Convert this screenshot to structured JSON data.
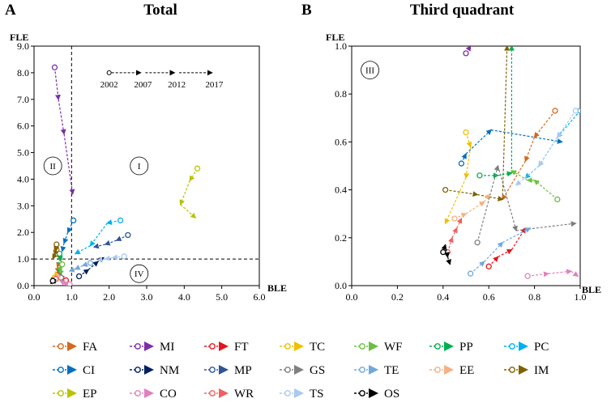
{
  "chart_data": [
    {
      "type": "scatter",
      "panel_letter": "A",
      "title": "Total",
      "xlabel": "BLE",
      "ylabel": "FLE",
      "xlim": [
        0,
        6
      ],
      "ylim": [
        0,
        9
      ],
      "x_ticks": [
        "0.0",
        "1.0",
        "2.0",
        "3.0",
        "4.0",
        "5.0",
        "6.0"
      ],
      "y_ticks": [
        "0.0",
        "1.0",
        "2.0",
        "3.0",
        "4.0",
        "5.0",
        "6.0",
        "7.0",
        "8.0",
        "9.0"
      ],
      "reference_lines": {
        "x": 1.0,
        "y": 1.0
      },
      "quadrant_labels": [
        {
          "label": "II",
          "x": 0.5,
          "y": 4.5
        },
        {
          "label": "I",
          "x": 2.8,
          "y": 4.5
        },
        {
          "label": "IV",
          "x": 2.8,
          "y": 0.45
        }
      ],
      "time_legend": {
        "years": [
          "2002",
          "2007",
          "2012",
          "2017"
        ],
        "x": [
          2.0,
          2.9,
          3.8,
          4.8
        ],
        "y": 8.0
      },
      "series": [
        {
          "name": "MI",
          "x": [
            0.55,
            0.65,
            0.8,
            1.03
          ],
          "y": [
            8.2,
            7.0,
            5.7,
            3.45
          ]
        },
        {
          "name": "EP",
          "x": [
            4.35,
            4.15,
            3.9,
            4.3
          ],
          "y": [
            4.4,
            3.95,
            3.05,
            2.55
          ]
        },
        {
          "name": "PC",
          "x": [
            2.3,
            1.95,
            1.5,
            1.1
          ],
          "y": [
            2.45,
            2.35,
            1.5,
            1.2
          ]
        },
        {
          "name": "CI",
          "x": [
            1.05,
            0.9,
            0.8,
            0.75
          ],
          "y": [
            2.45,
            2.0,
            1.6,
            1.3
          ]
        },
        {
          "name": "MP",
          "x": [
            2.5,
            2.2,
            1.9,
            1.6
          ],
          "y": [
            1.9,
            1.7,
            1.55,
            1.45
          ]
        },
        {
          "name": "NM",
          "x": [
            1.2,
            1.45,
            1.7,
            1.85
          ],
          "y": [
            0.35,
            0.6,
            0.9,
            1.05
          ]
        },
        {
          "name": "TS",
          "x": [
            2.4,
            2.1,
            1.9,
            1.7
          ],
          "y": [
            1.1,
            1.05,
            1.0,
            0.95
          ]
        },
        {
          "name": "TE",
          "x": [
            1.5,
            1.3,
            1.1,
            0.95
          ],
          "y": [
            0.85,
            0.75,
            0.62,
            0.55
          ]
        },
        {
          "name": "FA",
          "x": [
            0.6,
            0.7,
            0.62,
            0.65
          ],
          "y": [
            1.35,
            1.0,
            0.7,
            0.5
          ]
        },
        {
          "name": "PP",
          "x": [
            0.68,
            0.72,
            0.7,
            0.66
          ],
          "y": [
            1.2,
            0.95,
            0.7,
            0.45
          ]
        },
        {
          "name": "WF",
          "x": [
            0.75,
            0.7,
            0.72,
            0.68
          ],
          "y": [
            0.8,
            0.65,
            0.55,
            0.42
          ]
        },
        {
          "name": "IM",
          "x": [
            0.6,
            0.58,
            0.55,
            0.5
          ],
          "y": [
            1.55,
            1.3,
            1.15,
            1.02
          ]
        },
        {
          "name": "FT",
          "x": [
            0.85,
            0.75,
            0.68,
            0.62
          ],
          "y": [
            0.2,
            0.3,
            0.4,
            0.5
          ]
        },
        {
          "name": "TC",
          "x": [
            0.55,
            0.6,
            0.55,
            0.5
          ],
          "y": [
            0.3,
            0.45,
            0.35,
            0.22
          ]
        },
        {
          "name": "GS",
          "x": [
            0.72,
            0.7,
            0.68,
            0.66
          ],
          "y": [
            0.3,
            0.35,
            0.42,
            0.5
          ]
        },
        {
          "name": "EE",
          "x": [
            0.6,
            0.62,
            0.58,
            0.55
          ],
          "y": [
            0.25,
            0.35,
            0.3,
            0.2
          ]
        },
        {
          "name": "CO",
          "x": [
            0.95,
            0.85,
            0.78,
            0.7
          ],
          "y": [
            0.05,
            0.08,
            0.12,
            0.18
          ]
        },
        {
          "name": "WR",
          "x": [
            0.58,
            0.55,
            0.52,
            0.5
          ],
          "y": [
            0.25,
            0.2,
            0.15,
            0.12
          ]
        },
        {
          "name": "OS",
          "x": [
            0.5,
            0.48,
            0.47,
            0.45
          ],
          "y": [
            0.18,
            0.12,
            0.1,
            0.08
          ]
        }
      ]
    },
    {
      "type": "scatter",
      "panel_letter": "B",
      "title": "Third quadrant",
      "xlabel": "BLE",
      "ylabel": "FLE",
      "xlim": [
        0,
        1
      ],
      "ylim": [
        0,
        1
      ],
      "x_ticks": [
        "0.0",
        "0.2",
        "0.4",
        "0.6",
        "0.8",
        "1.0"
      ],
      "y_ticks": [
        "0.0",
        "0.2",
        "0.4",
        "0.6",
        "0.8",
        "1.0"
      ],
      "quadrant_labels": [
        {
          "label": "III",
          "x": 0.08,
          "y": 0.9
        }
      ],
      "series": [
        {
          "name": "MI",
          "x": [
            0.5,
            0.52
          ],
          "y": [
            0.97,
            1.0
          ]
        },
        {
          "name": "FA",
          "x": [
            0.89,
            0.8,
            0.76,
            0.66
          ],
          "y": [
            0.73,
            0.62,
            0.52,
            0.36
          ]
        },
        {
          "name": "IM",
          "x": [
            0.41,
            0.55,
            0.66,
            0.68
          ],
          "y": [
            0.4,
            0.38,
            0.36,
            1.0
          ]
        },
        {
          "name": "PC",
          "x": [
            1.0,
            0.9,
            0.82,
            0.76
          ],
          "y": [
            0.73,
            0.62,
            0.5,
            0.45
          ]
        },
        {
          "name": "CI",
          "x": [
            0.48,
            0.5,
            0.61,
            0.92
          ],
          "y": [
            0.51,
            0.55,
            0.65,
            0.6
          ]
        },
        {
          "name": "PP",
          "x": [
            0.56,
            0.64,
            0.7,
            0.7
          ],
          "y": [
            0.46,
            0.46,
            0.47,
            1.0
          ]
        },
        {
          "name": "WF",
          "x": [
            0.9,
            0.8,
            0.77,
            0.7
          ],
          "y": [
            0.36,
            0.44,
            0.44,
            0.48
          ]
        },
        {
          "name": "TC",
          "x": [
            0.5,
            0.52,
            0.5,
            0.41
          ],
          "y": [
            0.64,
            0.58,
            0.45,
            0.26
          ]
        },
        {
          "name": "EE",
          "x": [
            0.45,
            0.5,
            0.58,
            0.6
          ],
          "y": [
            0.28,
            0.3,
            0.35,
            0.38
          ]
        },
        {
          "name": "FT",
          "x": [
            0.6,
            0.64,
            0.7,
            0.76
          ],
          "y": [
            0.08,
            0.12,
            0.15,
            0.24
          ]
        },
        {
          "name": "GS",
          "x": [
            0.55,
            0.64,
            0.72,
            0.98
          ],
          "y": [
            0.18,
            0.5,
            0.23,
            0.26
          ]
        },
        {
          "name": "TE",
          "x": [
            0.52,
            0.58,
            0.66,
            0.78
          ],
          "y": [
            0.05,
            0.1,
            0.18,
            0.24
          ]
        },
        {
          "name": "WR",
          "x": [
            0.42,
            0.44,
            0.46,
            0.48
          ],
          "y": [
            0.14,
            0.2,
            0.24,
            0.28
          ]
        },
        {
          "name": "CO",
          "x": [
            0.77,
            0.86,
            0.96,
            0.99
          ],
          "y": [
            0.04,
            0.05,
            0.06,
            0.04
          ]
        },
        {
          "name": "TS",
          "x": [
            0.98,
            0.9,
            0.82,
            0.72
          ],
          "y": [
            0.73,
            0.62,
            0.5,
            0.42
          ]
        },
        {
          "name": "OS",
          "x": [
            0.4,
            0.41,
            0.42,
            0.43
          ],
          "y": [
            0.14,
            0.17,
            0.12,
            0.09
          ]
        }
      ]
    }
  ],
  "legend": [
    {
      "name": "FA",
      "color": "#d2691e"
    },
    {
      "name": "MI",
      "color": "#7b2fa8"
    },
    {
      "name": "FT",
      "color": "#e8141e"
    },
    {
      "name": "TC",
      "color": "#f0c000"
    },
    {
      "name": "WF",
      "color": "#6cc040"
    },
    {
      "name": "PP",
      "color": "#00b050"
    },
    {
      "name": "PC",
      "color": "#00b0f0"
    },
    {
      "name": "CI",
      "color": "#0070c0"
    },
    {
      "name": "NM",
      "color": "#002060"
    },
    {
      "name": "MP",
      "color": "#2e5597"
    },
    {
      "name": "GS",
      "color": "#7f7f7f"
    },
    {
      "name": "TE",
      "color": "#6fa8dc"
    },
    {
      "name": "EE",
      "color": "#f4b183"
    },
    {
      "name": "IM",
      "color": "#806000"
    },
    {
      "name": "EP",
      "color": "#b8c400"
    },
    {
      "name": "CO",
      "color": "#e080c0"
    },
    {
      "name": "WR",
      "color": "#f06060"
    },
    {
      "name": "TS",
      "color": "#a9c9f0"
    },
    {
      "name": "OS",
      "color": "#000000"
    }
  ]
}
